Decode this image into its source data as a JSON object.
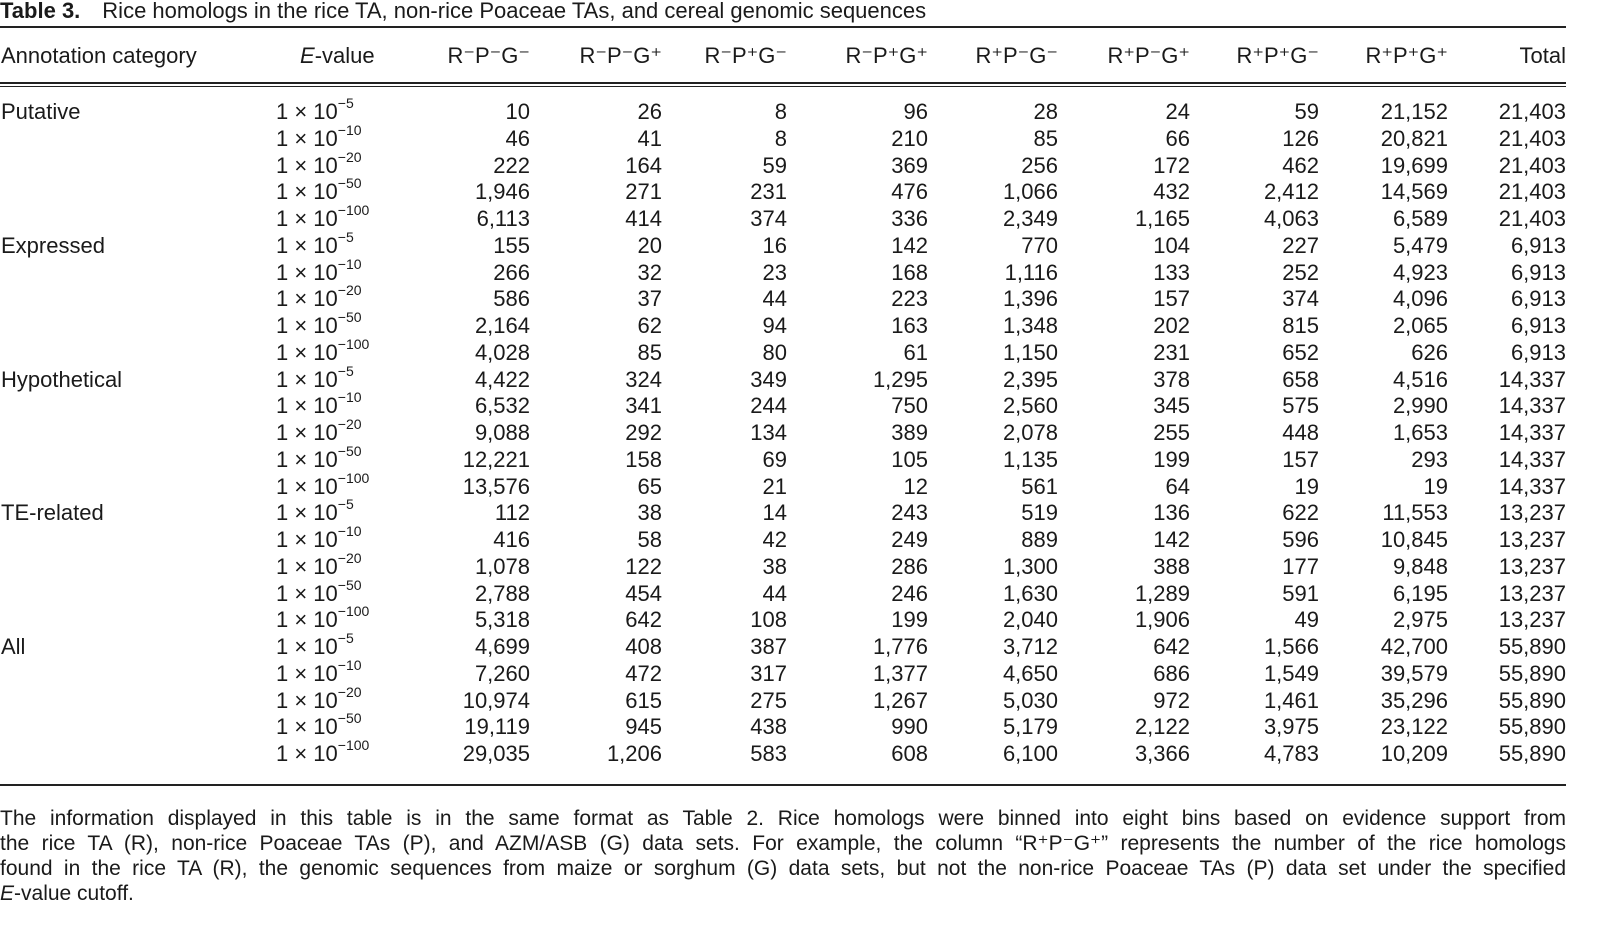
{
  "title": {
    "label": "Table 3.",
    "text": "Rice homologs in the rice TA, non-rice Poaceae TAs, and cereal genomic sequences"
  },
  "columns": [
    "Annotation category",
    "E-value",
    "R⁻P⁻G⁻",
    "R⁻P⁻G⁺",
    "R⁻P⁺G⁻",
    "R⁻P⁺G⁺",
    "R⁺P⁻G⁻",
    "R⁺P⁻G⁺",
    "R⁺P⁺G⁻",
    "R⁺P⁺G⁺",
    "Total"
  ],
  "evalue_prefix": "1 × 10",
  "groups": [
    {
      "category": "Putative",
      "rows": [
        {
          "exp": "−5",
          "values": [
            "10",
            "26",
            "8",
            "96",
            "28",
            "24",
            "59",
            "21,152",
            "21,403"
          ]
        },
        {
          "exp": "−10",
          "values": [
            "46",
            "41",
            "8",
            "210",
            "85",
            "66",
            "126",
            "20,821",
            "21,403"
          ]
        },
        {
          "exp": "−20",
          "values": [
            "222",
            "164",
            "59",
            "369",
            "256",
            "172",
            "462",
            "19,699",
            "21,403"
          ]
        },
        {
          "exp": "−50",
          "values": [
            "1,946",
            "271",
            "231",
            "476",
            "1,066",
            "432",
            "2,412",
            "14,569",
            "21,403"
          ]
        },
        {
          "exp": "−100",
          "values": [
            "6,113",
            "414",
            "374",
            "336",
            "2,349",
            "1,165",
            "4,063",
            "6,589",
            "21,403"
          ]
        }
      ]
    },
    {
      "category": "Expressed",
      "rows": [
        {
          "exp": "−5",
          "values": [
            "155",
            "20",
            "16",
            "142",
            "770",
            "104",
            "227",
            "5,479",
            "6,913"
          ]
        },
        {
          "exp": "−10",
          "values": [
            "266",
            "32",
            "23",
            "168",
            "1,116",
            "133",
            "252",
            "4,923",
            "6,913"
          ]
        },
        {
          "exp": "−20",
          "values": [
            "586",
            "37",
            "44",
            "223",
            "1,396",
            "157",
            "374",
            "4,096",
            "6,913"
          ]
        },
        {
          "exp": "−50",
          "values": [
            "2,164",
            "62",
            "94",
            "163",
            "1,348",
            "202",
            "815",
            "2,065",
            "6,913"
          ]
        },
        {
          "exp": "−100",
          "values": [
            "4,028",
            "85",
            "80",
            "61",
            "1,150",
            "231",
            "652",
            "626",
            "6,913"
          ]
        }
      ]
    },
    {
      "category": "Hypothetical",
      "rows": [
        {
          "exp": "−5",
          "values": [
            "4,422",
            "324",
            "349",
            "1,295",
            "2,395",
            "378",
            "658",
            "4,516",
            "14,337"
          ]
        },
        {
          "exp": "−10",
          "values": [
            "6,532",
            "341",
            "244",
            "750",
            "2,560",
            "345",
            "575",
            "2,990",
            "14,337"
          ]
        },
        {
          "exp": "−20",
          "values": [
            "9,088",
            "292",
            "134",
            "389",
            "2,078",
            "255",
            "448",
            "1,653",
            "14,337"
          ]
        },
        {
          "exp": "−50",
          "values": [
            "12,221",
            "158",
            "69",
            "105",
            "1,135",
            "199",
            "157",
            "293",
            "14,337"
          ]
        },
        {
          "exp": "−100",
          "values": [
            "13,576",
            "65",
            "21",
            "12",
            "561",
            "64",
            "19",
            "19",
            "14,337"
          ]
        }
      ]
    },
    {
      "category": "TE-related",
      "rows": [
        {
          "exp": "−5",
          "values": [
            "112",
            "38",
            "14",
            "243",
            "519",
            "136",
            "622",
            "11,553",
            "13,237"
          ]
        },
        {
          "exp": "−10",
          "values": [
            "416",
            "58",
            "42",
            "249",
            "889",
            "142",
            "596",
            "10,845",
            "13,237"
          ]
        },
        {
          "exp": "−20",
          "values": [
            "1,078",
            "122",
            "38",
            "286",
            "1,300",
            "388",
            "177",
            "9,848",
            "13,237"
          ]
        },
        {
          "exp": "−50",
          "values": [
            "2,788",
            "454",
            "44",
            "246",
            "1,630",
            "1,289",
            "591",
            "6,195",
            "13,237"
          ]
        },
        {
          "exp": "−100",
          "values": [
            "5,318",
            "642",
            "108",
            "199",
            "2,040",
            "1,906",
            "49",
            "2,975",
            "13,237"
          ]
        }
      ]
    },
    {
      "category": "All",
      "rows": [
        {
          "exp": "−5",
          "values": [
            "4,699",
            "408",
            "387",
            "1,776",
            "3,712",
            "642",
            "1,566",
            "42,700",
            "55,890"
          ]
        },
        {
          "exp": "−10",
          "values": [
            "7,260",
            "472",
            "317",
            "1,377",
            "4,650",
            "686",
            "1,549",
            "39,579",
            "55,890"
          ]
        },
        {
          "exp": "−20",
          "values": [
            "10,974",
            "615",
            "275",
            "1,267",
            "5,030",
            "972",
            "1,461",
            "35,296",
            "55,890"
          ]
        },
        {
          "exp": "−50",
          "values": [
            "19,119",
            "945",
            "438",
            "990",
            "5,179",
            "2,122",
            "3,975",
            "23,122",
            "55,890"
          ]
        },
        {
          "exp": "−100",
          "values": [
            "29,035",
            "1,206",
            "583",
            "608",
            "6,100",
            "3,366",
            "4,783",
            "10,209",
            "55,890"
          ]
        }
      ]
    }
  ],
  "footnote": {
    "lines": [
      "The information displayed in this table is in the same format as Table 2. Rice homologs were binned into eight bins based on evidence support from",
      "the rice TA (R), non-rice Poaceae TAs (P), and AZM/ASB (G) data sets. For example, the column “R⁺P⁻G⁺” represents the number of the rice homologs",
      "found in the rice TA (R), the genomic sequences from maize or sorghum (G) data sets, but not the non-rice Poaceae TAs (P) data set under the specified"
    ],
    "last_italic": "E",
    "last_rest": "-value cutoff."
  }
}
